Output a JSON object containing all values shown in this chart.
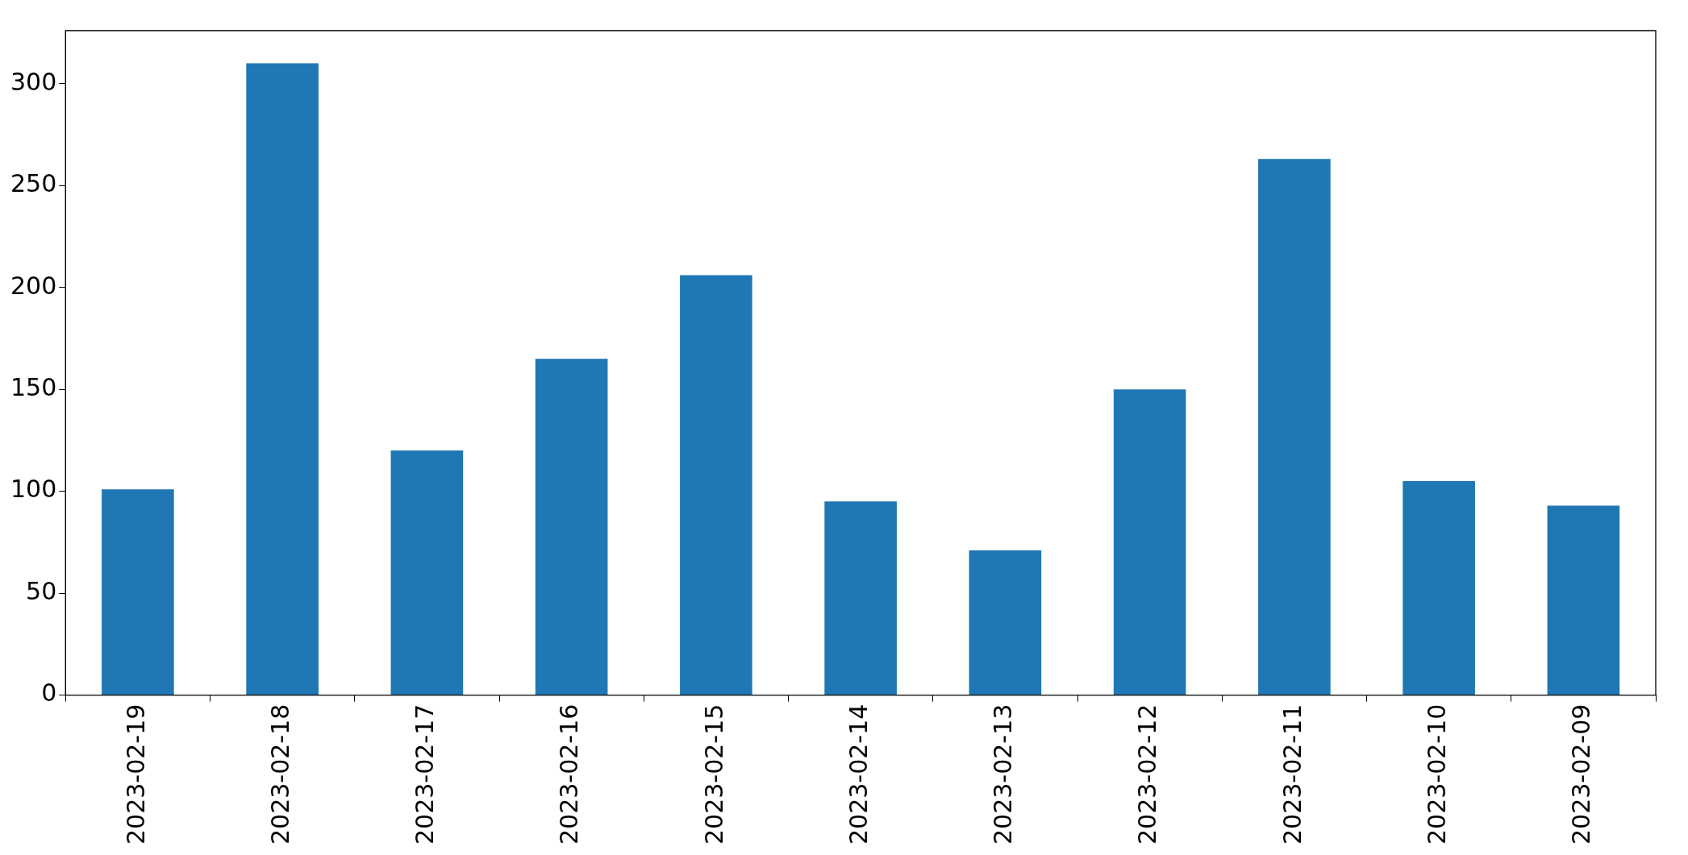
{
  "chart_data": {
    "type": "bar",
    "categories": [
      "2023-02-19",
      "2023-02-18",
      "2023-02-17",
      "2023-02-16",
      "2023-02-15",
      "2023-02-14",
      "2023-02-13",
      "2023-02-12",
      "2023-02-11",
      "2023-02-10",
      "2023-02-09"
    ],
    "values": [
      101,
      310,
      120,
      165,
      206,
      95,
      71,
      150,
      263,
      105,
      93
    ],
    "color": "#1f77b4",
    "ylim": [
      0,
      326
    ],
    "yticks": [
      0,
      50,
      100,
      150,
      200,
      250,
      300
    ],
    "grid": false,
    "legend": false
  }
}
